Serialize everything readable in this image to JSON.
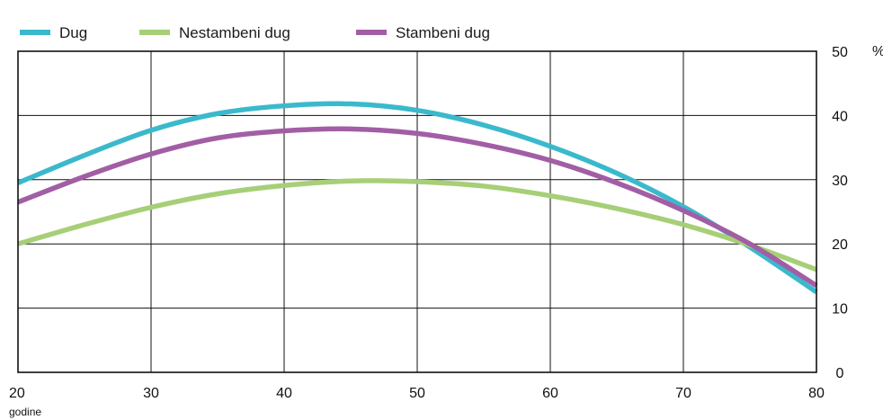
{
  "chart_data": {
    "type": "line",
    "xlabel": "godine",
    "ylabel": "%",
    "xlim": [
      20,
      80
    ],
    "ylim": [
      0,
      50
    ],
    "x_ticks": [
      20,
      30,
      40,
      50,
      60,
      70,
      80
    ],
    "y_ticks": [
      0,
      10,
      20,
      30,
      40,
      50
    ],
    "grid": true,
    "legend_position": "top-left",
    "x": [
      20,
      25,
      30,
      35,
      40,
      45,
      50,
      55,
      60,
      65,
      70,
      75,
      80
    ],
    "series": [
      {
        "name": "Dug",
        "color": "#3bb9cc",
        "values": [
          29.5,
          33.8,
          37.7,
          40.3,
          41.5,
          41.8,
          40.8,
          38.5,
          35.2,
          31.0,
          25.8,
          19.5,
          12.5
        ]
      },
      {
        "name": "Nestambeni dug",
        "color": "#a6cf77",
        "values": [
          20.0,
          23.0,
          25.7,
          27.8,
          29.1,
          29.8,
          29.7,
          29.0,
          27.5,
          25.5,
          23.0,
          19.8,
          16.0
        ]
      },
      {
        "name": "Stambeni dug",
        "color": "#a25ea5",
        "values": [
          26.5,
          30.5,
          34.0,
          36.5,
          37.6,
          37.9,
          37.2,
          35.5,
          33.0,
          29.5,
          25.2,
          20.0,
          13.5
        ]
      }
    ]
  }
}
